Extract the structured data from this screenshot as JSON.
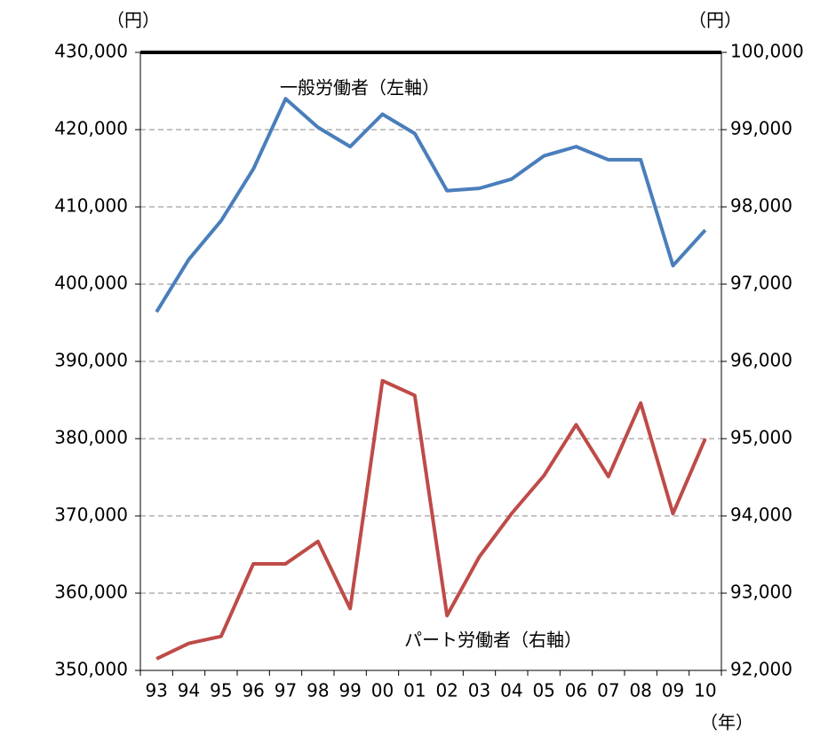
{
  "chart_data": {
    "type": "line",
    "categories": [
      "93",
      "94",
      "95",
      "96",
      "97",
      "98",
      "99",
      "00",
      "01",
      "02",
      "03",
      "04",
      "05",
      "06",
      "07",
      "08",
      "09",
      "10"
    ],
    "series": [
      {
        "name": "一般労働者（左軸）",
        "color": "#4a7ebb",
        "axis": "y",
        "values": [
          396400,
          403200,
          408200,
          414900,
          424000,
          420300,
          417800,
          422000,
          419500,
          412100,
          412400,
          413600,
          416600,
          417800,
          416100,
          416100,
          402400,
          407000
        ]
      },
      {
        "name": "パート労働者（右軸）",
        "color": "#be4b48",
        "axis": "y2",
        "values": [
          92150,
          92350,
          92440,
          93380,
          93380,
          93670,
          92800,
          95750,
          95560,
          92710,
          93470,
          94030,
          94520,
          95180,
          94510,
          95460,
          94030,
          95000
        ]
      }
    ],
    "ylim": [
      350000,
      430000
    ],
    "yticks": [
      {
        "value": 350000,
        "label": "350,000"
      },
      {
        "value": 360000,
        "label": "360,000"
      },
      {
        "value": 370000,
        "label": "370,000"
      },
      {
        "value": 380000,
        "label": "380,000"
      },
      {
        "value": 390000,
        "label": "390,000"
      },
      {
        "value": 400000,
        "label": "400,000"
      },
      {
        "value": 410000,
        "label": "410,000"
      },
      {
        "value": 420000,
        "label": "420,000"
      },
      {
        "value": 430000,
        "label": "430,000"
      }
    ],
    "y2lim": [
      92000,
      100000
    ],
    "y2ticks": [
      {
        "value": 92000,
        "label": "92,000"
      },
      {
        "value": 93000,
        "label": "93,000"
      },
      {
        "value": 94000,
        "label": "94,000"
      },
      {
        "value": 95000,
        "label": "95,000"
      },
      {
        "value": 96000,
        "label": "96,000"
      },
      {
        "value": 97000,
        "label": "97,000"
      },
      {
        "value": 98000,
        "label": "98,000"
      },
      {
        "value": 99000,
        "label": "99,000"
      },
      {
        "value": 100000,
        "label": "100,000"
      }
    ],
    "y_label": "（円）",
    "y2_label": "（円）",
    "x_label": "（年）",
    "grid": true
  }
}
